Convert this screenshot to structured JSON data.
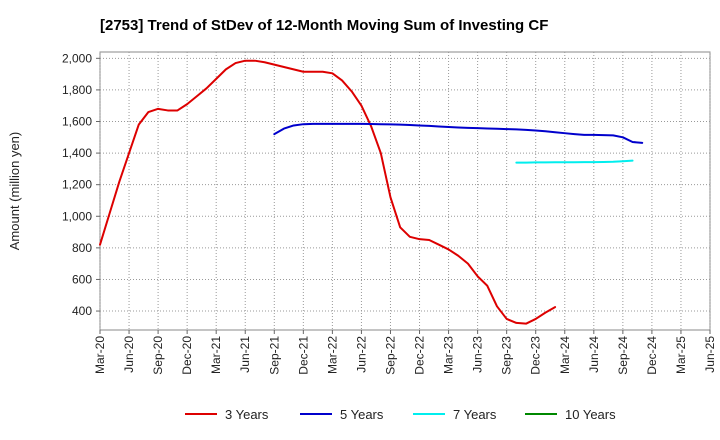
{
  "chart_data": {
    "type": "line",
    "title": "[2753]  Trend of StDev of 12-Month Moving Sum of Investing CF",
    "ylabel": "Amount (million yen)",
    "xlabel": "",
    "ylim": [
      280,
      2040
    ],
    "yticks": [
      400,
      600,
      800,
      1000,
      1200,
      1400,
      1600,
      1800,
      2000
    ],
    "ytick_labels": [
      "400",
      "600",
      "800",
      "1,000",
      "1,200",
      "1,400",
      "1,600",
      "1,800",
      "2,000"
    ],
    "xtick_labels": [
      "Mar-20",
      "Jun-20",
      "Sep-20",
      "Dec-20",
      "Mar-21",
      "Jun-21",
      "Sep-21",
      "Dec-21",
      "Mar-22",
      "Jun-22",
      "Sep-22",
      "Dec-22",
      "Mar-23",
      "Jun-23",
      "Sep-23",
      "Dec-23",
      "Mar-24",
      "Jun-24",
      "Sep-24",
      "Dec-24",
      "Mar-25",
      "Jun-25"
    ],
    "grid": true,
    "legend_position": "bottom",
    "series": [
      {
        "name": "3 Years",
        "color": "#dd0000",
        "start_index": 0,
        "values": [
          820,
          1020,
          1220,
          1400,
          1580,
          1660,
          1680,
          1670,
          1670,
          1710,
          1760,
          1810,
          1870,
          1930,
          1970,
          1985,
          1985,
          1975,
          1960,
          1945,
          1930,
          1915,
          1915,
          1915,
          1905,
          1860,
          1790,
          1700,
          1570,
          1400,
          1120,
          930,
          870,
          855,
          850,
          820,
          790,
          750,
          700,
          620,
          560,
          430,
          350,
          325,
          320,
          350,
          390,
          425
        ]
      },
      {
        "name": "5 Years",
        "color": "#0000cc",
        "start_index": 18,
        "values": [
          1520,
          1555,
          1575,
          1583,
          1585,
          1585,
          1585,
          1585,
          1585,
          1585,
          1584,
          1583,
          1582,
          1580,
          1578,
          1575,
          1572,
          1568,
          1565,
          1562,
          1560,
          1558,
          1556,
          1554,
          1552,
          1550,
          1547,
          1543,
          1538,
          1532,
          1526,
          1520,
          1515,
          1515,
          1514,
          1512,
          1500,
          1470,
          1465
        ]
      },
      {
        "name": "7 Years",
        "color": "#00eeee",
        "start_index": 43,
        "values": [
          1340,
          1340,
          1341,
          1341,
          1342,
          1342,
          1342,
          1343,
          1343,
          1344,
          1345,
          1348,
          1352
        ]
      },
      {
        "name": "10 Years",
        "color": "#008800",
        "start_index": 0,
        "values": []
      }
    ]
  }
}
